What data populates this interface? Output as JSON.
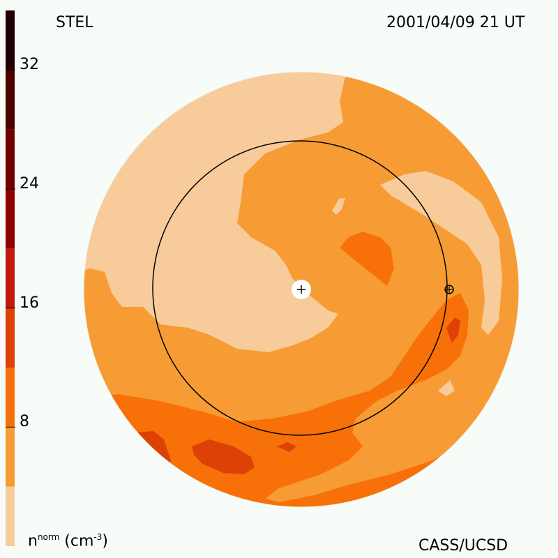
{
  "header": {
    "source": "STEL",
    "timestamp": "2001/04/09 21 UT"
  },
  "footer": {
    "unit_base": "n",
    "unit_sup": "norm",
    "unit_rest": " (cm",
    "unit_exp": "-3",
    "unit_close": ")",
    "credit": "CASS/UCSD"
  },
  "colorbar": {
    "levels": [
      {
        "value_min": 0,
        "color": "#f7cc9a"
      },
      {
        "value_min": 4,
        "color": "#f79c35"
      },
      {
        "value_min": 8,
        "color": "#f77108"
      },
      {
        "value_min": 12,
        "color": "#dd4105"
      },
      {
        "value_min": 16,
        "color": "#c11a0c"
      },
      {
        "value_min": 20,
        "color": "#8f0000"
      },
      {
        "value_min": 24,
        "color": "#6f0000"
      },
      {
        "value_min": 28,
        "color": "#4d0000"
      },
      {
        "value_min": 32,
        "color": "#200000"
      }
    ],
    "range": [
      0,
      36
    ],
    "ticks": [
      "8",
      "16",
      "24",
      "32"
    ]
  },
  "map": {
    "colors": {
      "light": "#f7cc9a",
      "mid": "#f79c35",
      "dark": "#f77108",
      "darker": "#dd4105",
      "outline": "#000000",
      "marker_fill": "#ffffff"
    },
    "sun_marker_icon": "plus-in-circle",
    "earth_marker_icon": "circle-plus"
  }
}
